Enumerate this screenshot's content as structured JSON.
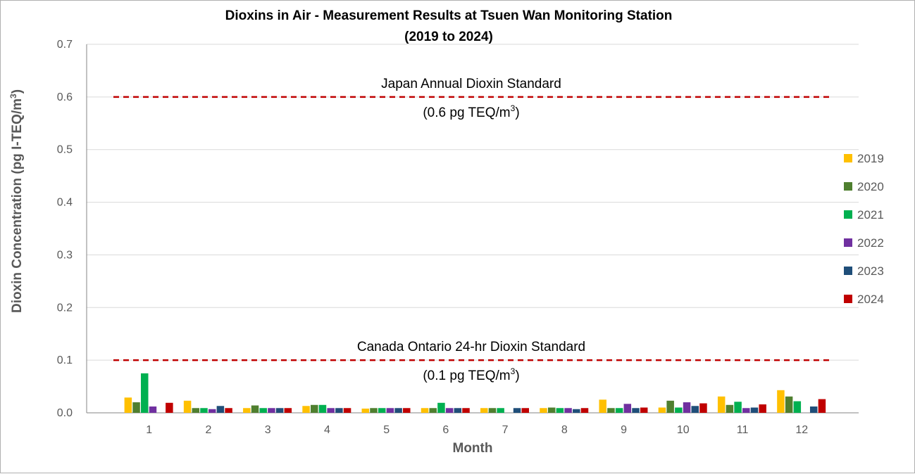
{
  "chart_data": {
    "type": "bar",
    "title": "Dioxins in Air - Measurement Results at Tsuen Wan Monitoring Station",
    "subtitle": "(2019 to 2024)",
    "xlabel": "Month",
    "ylabel": "Dioxin Concentration (pg I-TEQ/m",
    "ylabel_sup": "3",
    "ylabel_close": ")",
    "ylim": [
      0,
      0.7
    ],
    "yticks": [
      "0.0",
      "0.1",
      "0.2",
      "0.3",
      "0.4",
      "0.5",
      "0.6",
      "0.7"
    ],
    "grid": true,
    "legend_position": "right",
    "categories": [
      "1",
      "2",
      "3",
      "4",
      "5",
      "6",
      "7",
      "8",
      "9",
      "10",
      "11",
      "12"
    ],
    "series": [
      {
        "name": "2019",
        "color": "#FFC000",
        "values": [
          0.029,
          0.023,
          0.009,
          0.013,
          0.008,
          0.009,
          0.009,
          0.009,
          0.025,
          0.01,
          0.031,
          0.043
        ]
      },
      {
        "name": "2020",
        "color": "#4F7F2F",
        "values": [
          0.02,
          0.009,
          0.014,
          0.015,
          0.009,
          0.009,
          0.009,
          0.01,
          0.009,
          0.023,
          0.015,
          0.031
        ]
      },
      {
        "name": "2021",
        "color": "#00B050",
        "values": [
          0.075,
          0.009,
          0.009,
          0.015,
          0.009,
          0.019,
          0.009,
          0.009,
          0.009,
          0.01,
          0.021,
          0.022
        ]
      },
      {
        "name": "2022",
        "color": "#7030A0",
        "values": [
          0.012,
          0.007,
          0.009,
          0.009,
          0.009,
          0.009,
          null,
          0.009,
          0.017,
          0.02,
          0.009,
          null
        ]
      },
      {
        "name": "2023",
        "color": "#1F4E79",
        "values": [
          null,
          0.013,
          0.009,
          0.009,
          0.009,
          0.009,
          0.009,
          0.007,
          0.009,
          0.013,
          0.01,
          0.012
        ]
      },
      {
        "name": "2024",
        "color": "#C00000",
        "values": [
          0.019,
          0.009,
          0.009,
          0.009,
          0.009,
          0.009,
          0.009,
          0.009,
          0.01,
          0.018,
          0.016,
          0.026
        ]
      }
    ],
    "reference_lines": [
      {
        "value": 0.6,
        "label": "Japan Annual Dioxin Standard",
        "sublabel": "(0.6 pg TEQ/m",
        "sublabel_sup": "3",
        "sublabel_close": ")",
        "color": "#C00000"
      },
      {
        "value": 0.1,
        "label": "Canada Ontario 24-hr Dioxin Standard",
        "sublabel": "(0.1 pg TEQ/m",
        "sublabel_sup": "3",
        "sublabel_close": ")",
        "color": "#C00000"
      }
    ]
  }
}
